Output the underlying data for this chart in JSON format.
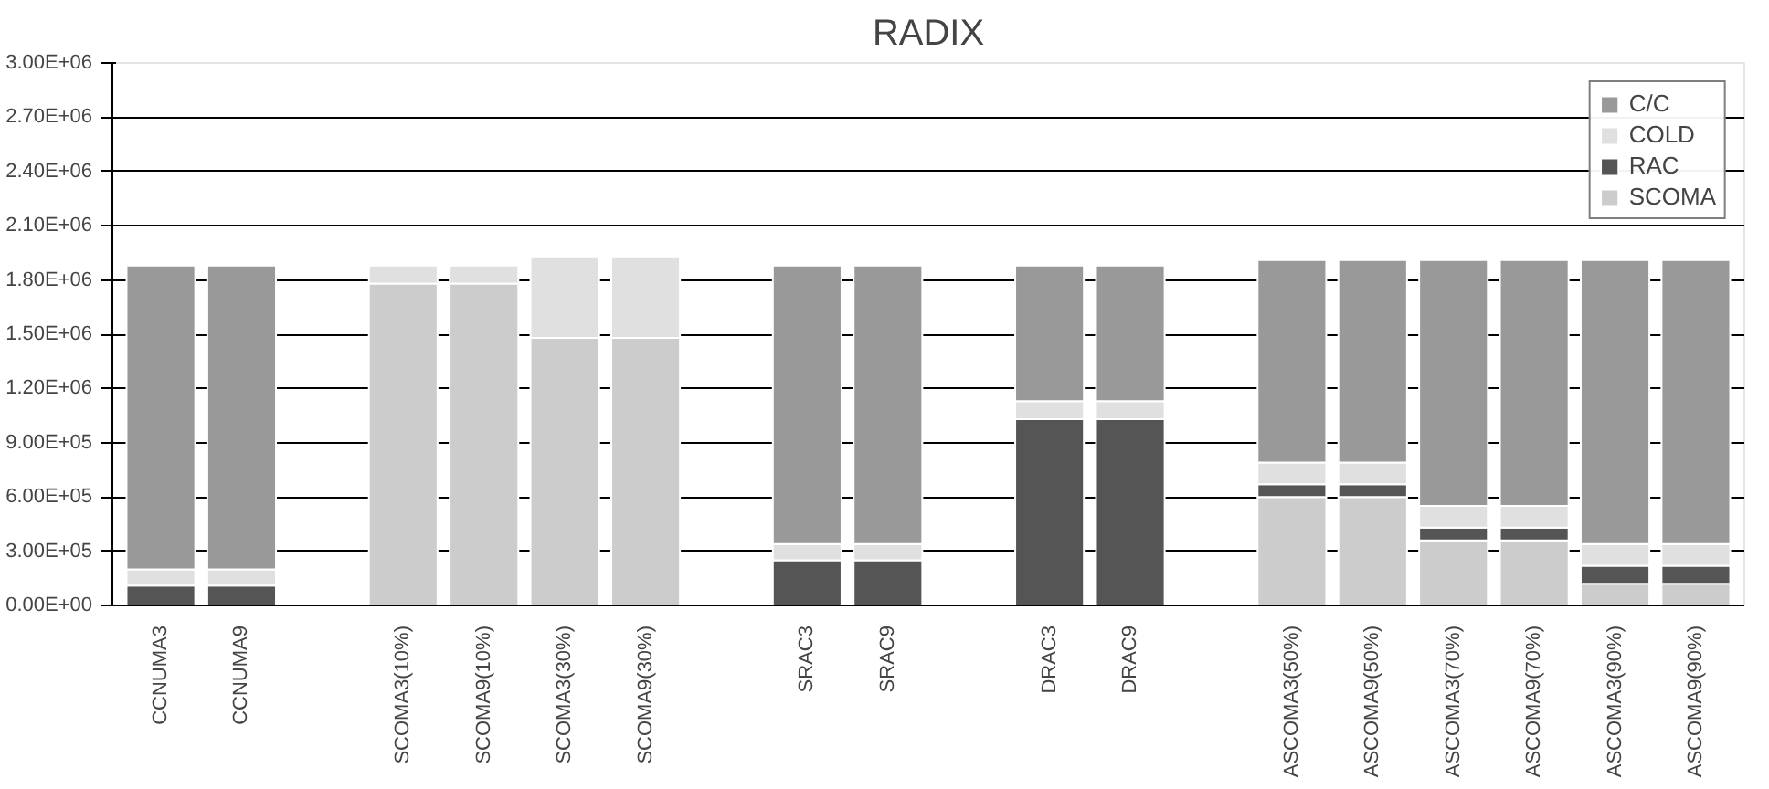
{
  "chart_data": {
    "type": "bar",
    "title": "RADIX",
    "stacked": true,
    "grid": "y",
    "legend": "top right",
    "categories": [
      "CCNUMA3",
      "CCNUMA9",
      null,
      "SCOMA3(10%)",
      "SCOMA9(10%)",
      "SCOMA3(30%)",
      "SCOMA9(30%)",
      null,
      "SRAC3",
      "SRAC9",
      null,
      "DRAC3",
      "DRAC9",
      null,
      "ASCOMA3(50%)",
      "ASCOMA9(50%)",
      "ASCOMA3(70%)",
      "ASCOMA9(70%)",
      "ASCOMA3(90%)",
      "ASCOMA9(90%)"
    ],
    "ylim": [
      0,
      3000000
    ],
    "yticks": [
      {
        "value": 0,
        "label": "0.00E+00"
      },
      {
        "value": 300000,
        "label": "3.00E+05"
      },
      {
        "value": 600000,
        "label": "6.00E+05"
      },
      {
        "value": 900000,
        "label": "9.00E+05"
      },
      {
        "value": 1200000,
        "label": "1.20E+06"
      },
      {
        "value": 1500000,
        "label": "1.50E+06"
      },
      {
        "value": 1800000,
        "label": "1.80E+06"
      },
      {
        "value": 2100000,
        "label": "2.10E+06"
      },
      {
        "value": 2400000,
        "label": "2.40E+06"
      },
      {
        "value": 2700000,
        "label": "2.70E+06"
      },
      {
        "value": 3000000,
        "label": "3.00E+06"
      }
    ],
    "series": [
      {
        "name": "SCOMA",
        "color": "#cccccc",
        "values": [
          0,
          0,
          null,
          1780000,
          1780000,
          1480000,
          1480000,
          null,
          0,
          0,
          null,
          0,
          0,
          null,
          600000,
          600000,
          360000,
          360000,
          120000,
          120000
        ]
      },
      {
        "name": "RAC",
        "color": "#555555",
        "values": [
          110000,
          110000,
          null,
          0,
          0,
          0,
          0,
          null,
          250000,
          250000,
          null,
          1030000,
          1030000,
          null,
          70000,
          70000,
          70000,
          70000,
          100000,
          100000
        ]
      },
      {
        "name": "COLD",
        "color": "#e0e0e0",
        "values": [
          90000,
          90000,
          null,
          100000,
          100000,
          450000,
          450000,
          null,
          90000,
          90000,
          null,
          100000,
          100000,
          null,
          120000,
          120000,
          120000,
          120000,
          120000,
          120000
        ]
      },
      {
        "name": "C/C",
        "color": "#999999",
        "values": [
          1680000,
          1680000,
          null,
          0,
          0,
          0,
          0,
          null,
          1540000,
          1540000,
          null,
          750000,
          750000,
          null,
          1120000,
          1120000,
          1360000,
          1360000,
          1570000,
          1570000
        ]
      }
    ]
  }
}
